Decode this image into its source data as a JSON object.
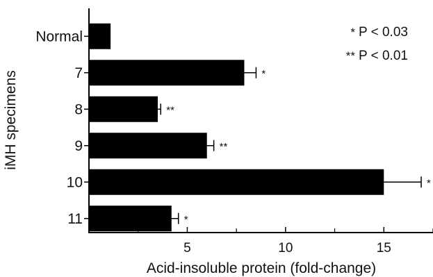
{
  "chart_data": {
    "type": "bar",
    "orientation": "horizontal",
    "title": "",
    "xlabel": "Acid-insoluble protein (fold-change)",
    "ylabel": "iMH specimens",
    "categories": [
      "Normal",
      "7",
      "8",
      "9",
      "10",
      "11"
    ],
    "values": [
      1.1,
      7.9,
      3.5,
      6.0,
      15.0,
      4.2
    ],
    "error_plus": [
      0.0,
      0.6,
      0.15,
      0.35,
      1.9,
      0.35
    ],
    "significance": [
      "",
      "*",
      "**",
      "**",
      "*",
      "*"
    ],
    "xlim": [
      0,
      17.5
    ],
    "xticks": [
      5,
      10,
      15
    ],
    "xtick_labels": [
      "5",
      "10",
      "15"
    ],
    "grid": false,
    "legend": [
      {
        "marker": "*",
        "label": "P < 0.03"
      },
      {
        "marker": "**",
        "label": "P < 0.01"
      }
    ],
    "colors": {
      "bar": "#000000",
      "axis": "#000000",
      "text": "#111111"
    }
  }
}
